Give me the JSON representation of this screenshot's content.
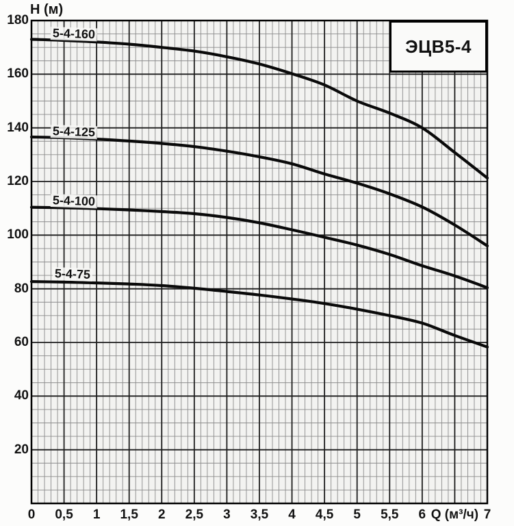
{
  "page": {
    "background": "#fcfcfb"
  },
  "colors": {
    "curve": "#0a0a0a",
    "grid_major": "#1c1c1c",
    "grid_minor": "#8a8a8a",
    "plot_background": "#f3f3f1",
    "frame": "#000000",
    "title_box_background": "#fafaf9"
  },
  "chart_data": {
    "type": "line",
    "title": "ЭЦВ5-4",
    "ylabel": "H (м)",
    "xlabel": "Q (м³/ч)",
    "xlabel_q_position": 6.5,
    "xlim": [
      0,
      7
    ],
    "ylim": [
      0,
      180
    ],
    "x_major_step": 0.5,
    "x_minor_step": 0.1,
    "y_major_step": 20,
    "y_minor_step": 5,
    "grid": "on",
    "legend_position": "inline-curve-labels",
    "x": [
      0,
      0.5,
      1,
      1.5,
      2,
      2.5,
      3,
      3.5,
      4,
      4.5,
      5,
      5.5,
      6,
      6.5,
      7
    ],
    "x_tick_labels": [
      {
        "q": 0,
        "label": "0"
      },
      {
        "q": 0.5,
        "label": "0,5"
      },
      {
        "q": 1,
        "label": "1"
      },
      {
        "q": 1.5,
        "label": "1,5"
      },
      {
        "q": 2,
        "label": "2"
      },
      {
        "q": 2.5,
        "label": "2,5"
      },
      {
        "q": 3,
        "label": "3"
      },
      {
        "q": 3.5,
        "label": "3,5"
      },
      {
        "q": 4,
        "label": "4"
      },
      {
        "q": 4.5,
        "label": "4,5"
      },
      {
        "q": 5,
        "label": "5"
      },
      {
        "q": 5.5,
        "label": "5,5"
      },
      {
        "q": 6,
        "label": "6"
      },
      {
        "q": 7,
        "label": "7"
      }
    ],
    "y_tick_labels": [
      {
        "h": 180,
        "label": "180"
      },
      {
        "h": 160,
        "label": "160"
      },
      {
        "h": 140,
        "label": "140"
      },
      {
        "h": 120,
        "label": "120"
      },
      {
        "h": 100,
        "label": "100"
      },
      {
        "h": 80,
        "label": "80"
      },
      {
        "h": 60,
        "label": "60"
      },
      {
        "h": 40,
        "label": "40"
      },
      {
        "h": 20,
        "label": "20"
      }
    ],
    "series": [
      {
        "name": "5-4-160",
        "label": {
          "q": 0.29,
          "h": 174.8
        },
        "values": [
          173,
          172.6,
          172,
          171.2,
          170,
          168.6,
          166.5,
          163.8,
          160.2,
          156,
          150,
          145.5,
          140,
          130.8,
          121.3
        ]
      },
      {
        "name": "5-4-125",
        "label": {
          "q": 0.29,
          "h": 138.3
        },
        "values": [
          136.6,
          136.3,
          135.8,
          135.1,
          134.2,
          133,
          131.3,
          129.2,
          126.6,
          122.8,
          119.4,
          115.4,
          110.5,
          103.8,
          96
        ]
      },
      {
        "name": "5-4-100",
        "label": {
          "q": 0.29,
          "h": 112.5
        },
        "values": [
          110.4,
          110.2,
          109.9,
          109.4,
          108.8,
          108,
          106.6,
          104.6,
          102,
          99.2,
          96.3,
          92.8,
          88.6,
          84.8,
          80.4
        ]
      },
      {
        "name": "5-4-75",
        "label": {
          "q": 0.33,
          "h": 85.4
        },
        "values": [
          82.7,
          82.5,
          82.2,
          81.8,
          81.2,
          80.2,
          79,
          77.7,
          76.2,
          74.5,
          72.4,
          70,
          67.2,
          62.6,
          58.3
        ]
      }
    ]
  }
}
